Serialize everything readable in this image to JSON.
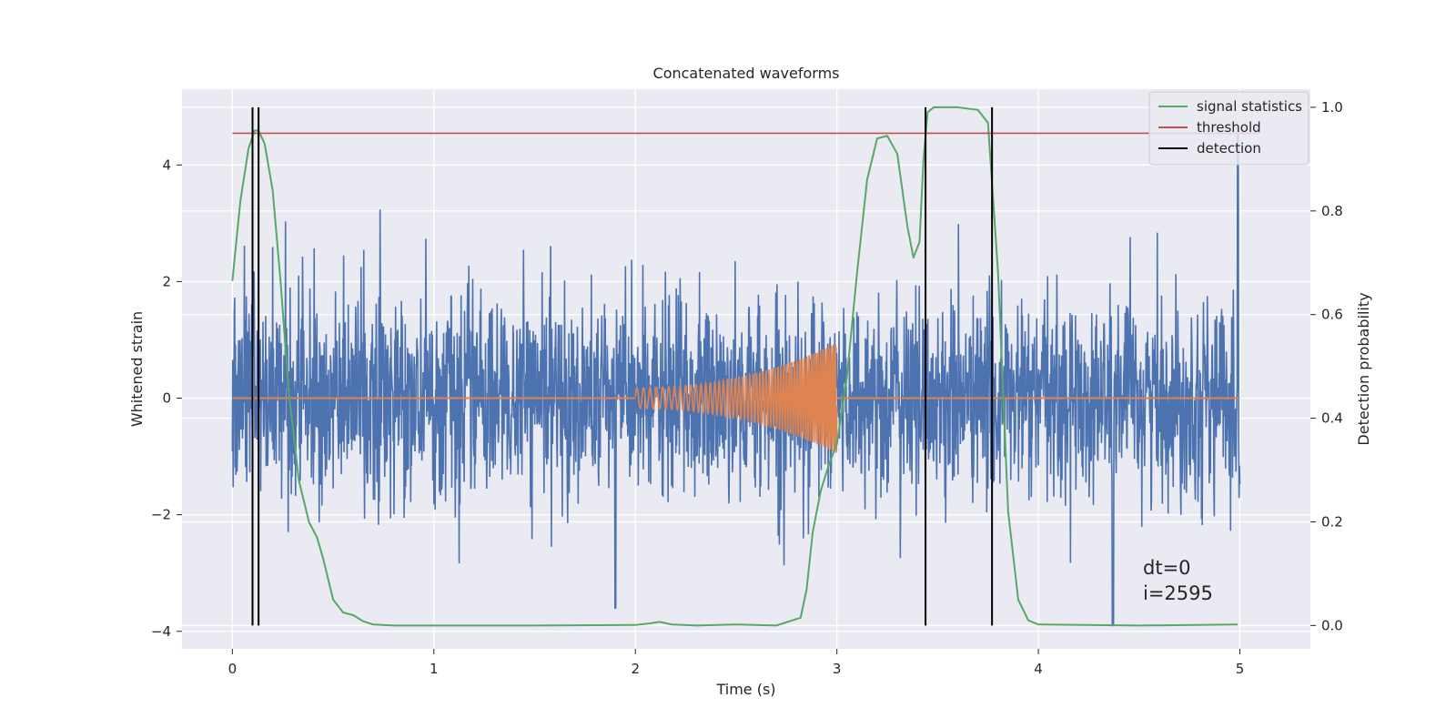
{
  "chart_data": {
    "type": "line",
    "title": "Concatenated waveforms",
    "xlabel": "Time (s)",
    "ylabel": "Whitened strain",
    "y2label": "Detection probability",
    "xlim": [
      -0.25,
      5.35
    ],
    "ylim": [
      -4.3,
      5.3
    ],
    "y2lim": [
      -0.045,
      1.035
    ],
    "x_ticks": [
      0,
      1,
      2,
      3,
      4,
      5
    ],
    "y_ticks": [
      -4,
      -2,
      0,
      2,
      4
    ],
    "y2_ticks": [
      0.0,
      0.2,
      0.4,
      0.6,
      0.8,
      1.0
    ],
    "x_tick_labels": [
      "0",
      "1",
      "2",
      "3",
      "4",
      "5"
    ],
    "y_tick_labels": [
      "−4",
      "−2",
      "0",
      "2",
      "4"
    ],
    "y2_tick_labels": [
      "0.0",
      "0.2",
      "0.4",
      "0.6",
      "0.8",
      "1.0"
    ],
    "grid": true,
    "legend_position": "top-right",
    "colors": {
      "background": "#eaeaf2",
      "grid": "#ffffff",
      "strain": "#4c72b0",
      "injection": "#dd8452",
      "signal_statistics": "#55a868",
      "threshold": "#c44e52",
      "detection": "#000000"
    },
    "series": [
      {
        "name": "signal statistics",
        "axis": "right",
        "x": [
          0.0,
          0.04,
          0.08,
          0.11,
          0.13,
          0.16,
          0.2,
          0.24,
          0.28,
          0.33,
          0.38,
          0.42,
          0.45,
          0.5,
          0.55,
          0.6,
          0.65,
          0.7,
          0.8,
          1.0,
          1.5,
          2.0,
          2.07,
          2.12,
          2.18,
          2.3,
          2.5,
          2.7,
          2.82,
          2.85,
          2.88,
          2.92,
          2.96,
          3.0,
          3.05,
          3.1,
          3.15,
          3.2,
          3.25,
          3.3,
          3.35,
          3.38,
          3.41,
          3.43,
          3.45,
          3.48,
          3.52,
          3.6,
          3.7,
          3.75,
          3.8,
          3.85,
          3.9,
          3.95,
          4.0,
          4.5,
          4.99
        ],
        "values": [
          0.665,
          0.82,
          0.92,
          0.955,
          0.955,
          0.93,
          0.84,
          0.66,
          0.45,
          0.28,
          0.2,
          0.17,
          0.13,
          0.05,
          0.025,
          0.02,
          0.008,
          0.002,
          0.0,
          0.0,
          0.0,
          0.001,
          0.004,
          0.007,
          0.002,
          0.0,
          0.002,
          0.0,
          0.015,
          0.07,
          0.18,
          0.26,
          0.31,
          0.35,
          0.48,
          0.68,
          0.86,
          0.94,
          0.945,
          0.91,
          0.77,
          0.71,
          0.74,
          0.9,
          0.99,
          1.0,
          1.0,
          1.0,
          0.995,
          0.97,
          0.68,
          0.22,
          0.05,
          0.01,
          0.002,
          0.0,
          0.002
        ]
      },
      {
        "name": "threshold",
        "axis": "right",
        "x": [
          0,
          5.1
        ],
        "values": [
          0.95,
          0.95
        ]
      },
      {
        "name": "detection",
        "axis": "right",
        "x": [
          0.1,
          0.13,
          3.44,
          3.77
        ],
        "values": [
          1.0,
          1.0,
          1.0,
          1.0
        ]
      }
    ],
    "strain_noise": {
      "x_range": [
        0,
        5
      ],
      "samples": 2600,
      "y_range_typical": [
        -1.5,
        1.5
      ],
      "y_min": -3.9,
      "y_max": 4.5
    },
    "injection": {
      "x_range": [
        2.0,
        3.0
      ],
      "start_amplitude": 0.18,
      "end_amplitude": 0.95,
      "start_frequency": 30,
      "end_frequency": 100
    },
    "annotation": {
      "line1": "dt=0",
      "line2": "i=2595"
    },
    "legend": [
      {
        "label": "signal statistics",
        "color": "#55a868"
      },
      {
        "label": "threshold",
        "color": "#c44e52"
      },
      {
        "label": "detection",
        "color": "#000000"
      }
    ]
  }
}
